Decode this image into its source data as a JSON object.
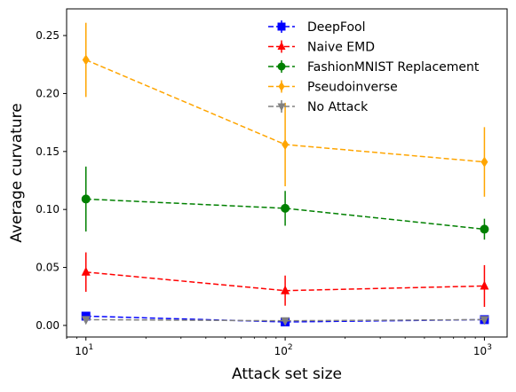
{
  "chart_data": {
    "type": "line",
    "title": "",
    "xlabel": "Attack set size",
    "ylabel": "Average curvature",
    "xscale": "log",
    "x": [
      10,
      100,
      1000
    ],
    "x_tick_labels": [
      {
        "value": 10,
        "base": "10",
        "exp": "1"
      },
      {
        "value": 100,
        "base": "10",
        "exp": "2"
      },
      {
        "value": 1000,
        "base": "10",
        "exp": "3"
      }
    ],
    "xlim": [
      8,
      1300
    ],
    "ylim": [
      -0.01,
      0.273
    ],
    "yticks": [
      0.0,
      0.05,
      0.1,
      0.15,
      0.2,
      0.25
    ],
    "y_tick_labels": [
      "0.00",
      "0.05",
      "0.10",
      "0.15",
      "0.20",
      "0.25"
    ],
    "grid": false,
    "legend_position": "top-right",
    "series": [
      {
        "name": "DeepFool",
        "color": "#0000ff",
        "marker": "square",
        "values": [
          0.008,
          0.003,
          0.005
        ],
        "errors": [
          0.003,
          0.0015,
          0.002
        ]
      },
      {
        "name": "Naive EMD",
        "color": "#ff0000",
        "marker": "triangle",
        "values": [
          0.046,
          0.03,
          0.034
        ],
        "errors": [
          0.017,
          0.013,
          0.018
        ]
      },
      {
        "name": "FashionMNIST Replacement",
        "color": "#008000",
        "marker": "circle",
        "values": [
          0.109,
          0.101,
          0.083
        ],
        "errors": [
          0.028,
          0.015,
          0.009
        ]
      },
      {
        "name": "Pseudoinverse",
        "color": "#ffa500",
        "marker": "diamond",
        "values": [
          0.229,
          0.156,
          0.141
        ],
        "errors": [
          0.032,
          0.036,
          0.03
        ]
      },
      {
        "name": "No Attack",
        "color": "#808080",
        "marker": "triangle-down",
        "values": [
          0.005,
          0.004,
          0.005
        ],
        "errors": [
          0.001,
          0.001,
          0.001
        ]
      }
    ]
  }
}
